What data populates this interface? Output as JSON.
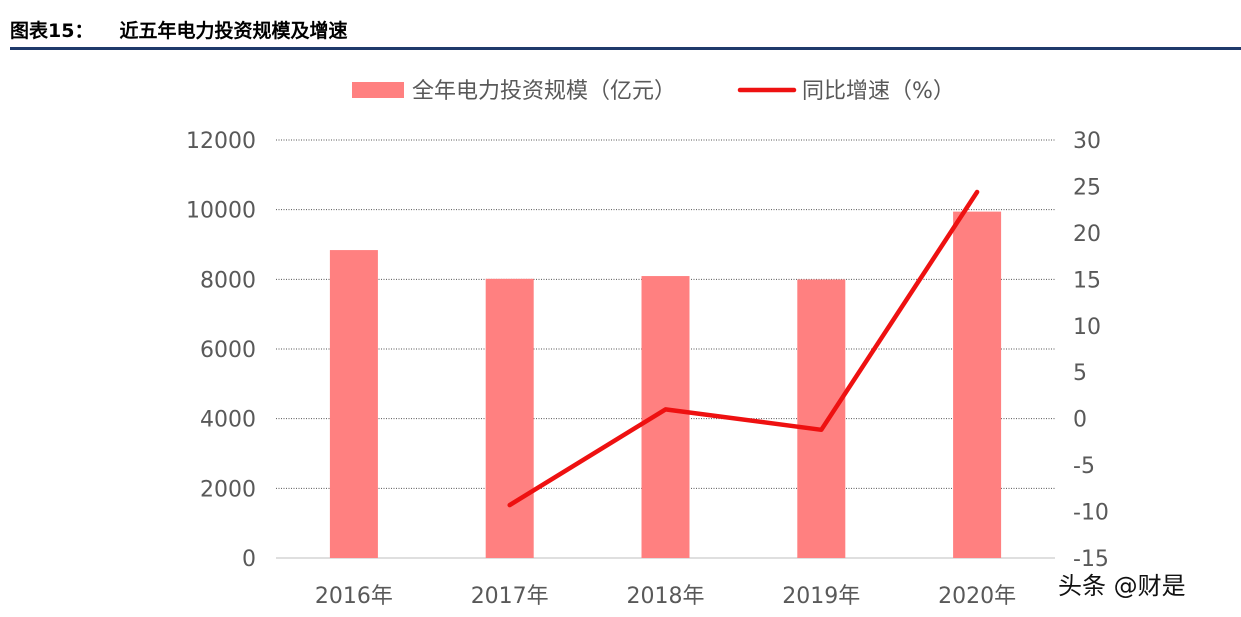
{
  "figure": {
    "label": "图表15：",
    "title": "近五年电力投资规模及增速"
  },
  "chart_data": {
    "type": "bar",
    "categories": [
      "2016年",
      "2017年",
      "2018年",
      "2019年",
      "2020年"
    ],
    "series": [
      {
        "name": "全年电力投资规模（亿元）",
        "type": "bar",
        "axis": "left",
        "values": [
          8840,
          8015,
          8094,
          7995,
          9944
        ],
        "color": "#ff8080"
      },
      {
        "name": "同比增速（%）",
        "type": "line",
        "axis": "right",
        "values": [
          null,
          -9.3,
          1.0,
          -1.2,
          24.4
        ],
        "color": "#ee1111"
      }
    ],
    "y_left": {
      "range": [
        0,
        12000
      ],
      "ticks": [
        "0",
        "2000",
        "4000",
        "6000",
        "8000",
        "10000",
        "12000"
      ]
    },
    "y_right": {
      "range": [
        -15,
        30
      ],
      "ticks": [
        "-15",
        "-10",
        "-5",
        "0",
        "5",
        "10",
        "15",
        "20",
        "25",
        "30"
      ]
    },
    "grid": true,
    "legend_position": "top-center"
  },
  "watermark": "头条 @财是"
}
